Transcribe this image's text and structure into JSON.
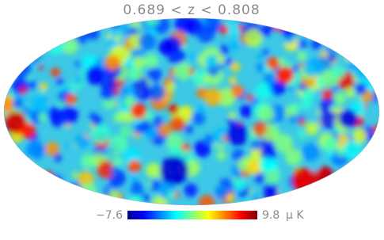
{
  "title": "0.689 < z < 0.808",
  "colorbar": {
    "min": {
      "value": -7.6,
      "label": "−7.6"
    },
    "max": 9.8,
    "unit": "μ K"
  }
}
